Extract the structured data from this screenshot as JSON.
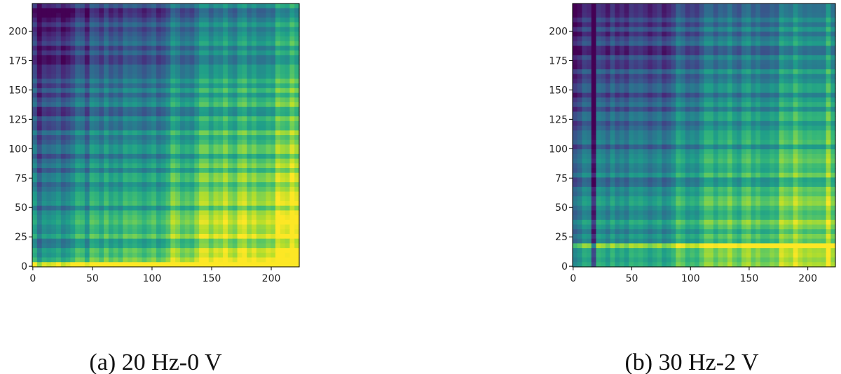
{
  "chart_data": [
    {
      "type": "heatmap",
      "caption": "(a) 20 Hz-0 V",
      "colormap": "viridis",
      "xlim": [
        -0.5,
        223.5
      ],
      "ylim": [
        -0.5,
        223.5
      ],
      "xticks": [
        0,
        50,
        100,
        150,
        200
      ],
      "yticks": [
        0,
        25,
        50,
        75,
        100,
        125,
        150,
        175,
        200
      ]
    },
    {
      "type": "heatmap",
      "caption": "(b) 30 Hz-2 V",
      "colormap": "viridis",
      "xlim": [
        -0.5,
        223.5
      ],
      "ylim": [
        -0.5,
        223.5
      ],
      "xticks": [
        0,
        50,
        100,
        150,
        200
      ],
      "yticks": [
        0,
        25,
        50,
        75,
        100,
        125,
        150,
        175,
        200
      ]
    }
  ]
}
